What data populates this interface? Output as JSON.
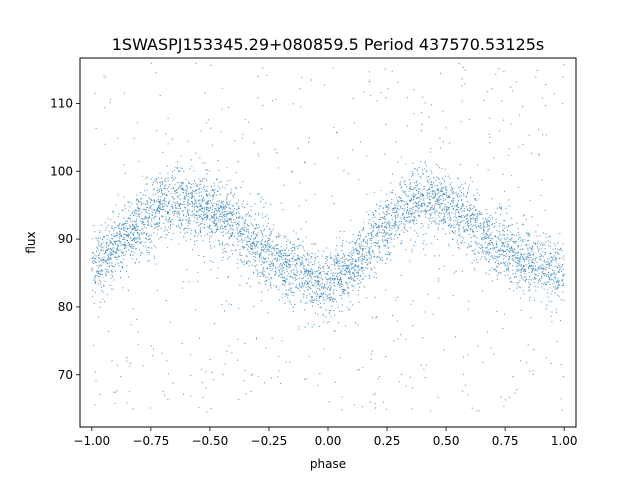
{
  "chart_data": {
    "type": "scatter",
    "title": "1SWASPJ153345.29+080859.5 Period 437570.53125s",
    "xlabel": "phase",
    "ylabel": "flux",
    "xlim": [
      -1.05,
      1.05
    ],
    "ylim": [
      62.3,
      116.7
    ],
    "xticks": [
      -1.0,
      -0.75,
      -0.5,
      -0.25,
      0.0,
      0.25,
      0.5,
      0.75,
      1.0
    ],
    "xtick_labels": [
      "−1.00",
      "−0.75",
      "−0.50",
      "−0.25",
      "0.00",
      "0.25",
      "0.50",
      "0.75",
      "1.00"
    ],
    "yticks": [
      70,
      80,
      90,
      100,
      110
    ],
    "ytick_labels": [
      "70",
      "80",
      "90",
      "100",
      "110"
    ],
    "grid": false,
    "marker_color": "#1f77b4",
    "x_range": [
      -1.0,
      1.0
    ],
    "y_range": [
      64.5,
      116
    ],
    "curve_phase": [
      -1.0,
      -0.9,
      -0.8,
      -0.7,
      -0.6,
      -0.5,
      -0.4,
      -0.3,
      -0.2,
      -0.1,
      0.0,
      0.1,
      0.2,
      0.3,
      0.4,
      0.5,
      0.6,
      0.7,
      0.8,
      0.9,
      1.0
    ],
    "curve_flux_median": [
      86,
      89,
      92,
      95,
      95.5,
      94,
      92,
      89,
      86.5,
      84.5,
      83,
      86,
      90,
      94,
      96,
      95,
      92.5,
      89.5,
      87.5,
      86,
      85
    ],
    "band_halfwidth": 4.5,
    "description_note": ""
  }
}
